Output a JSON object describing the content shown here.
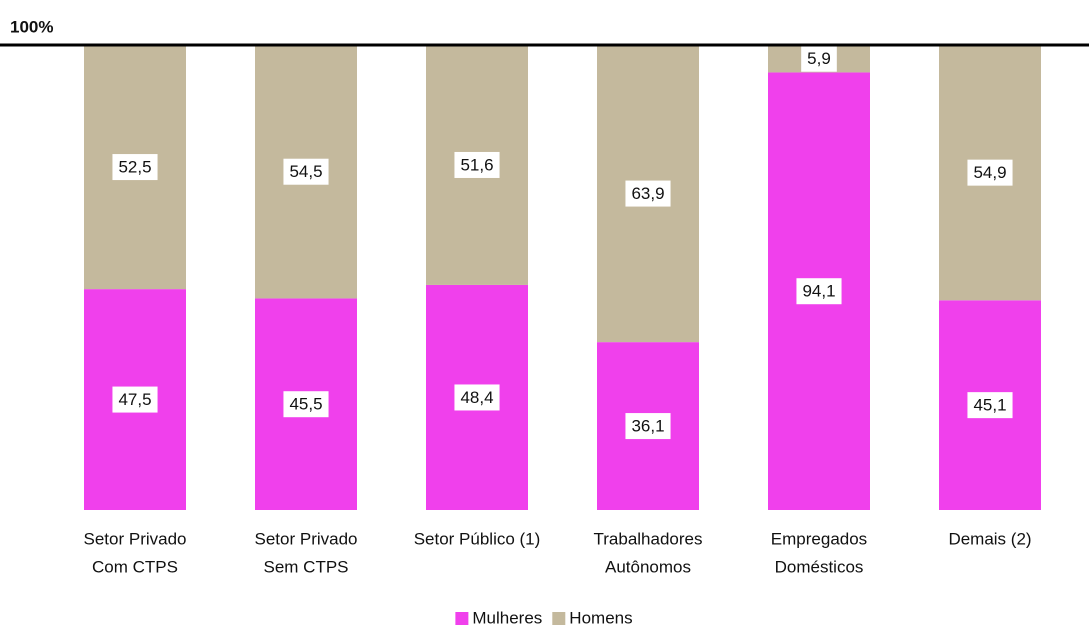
{
  "chart_data": {
    "type": "stacked-bar",
    "categories": [
      [
        "Setor Privado",
        "Com CTPS"
      ],
      [
        "Setor Privado",
        "Sem CTPS"
      ],
      [
        "Setor Público (1)"
      ],
      [
        "Trabalhadores",
        "Autônomos"
      ],
      [
        "Empregados",
        "Domésticos"
      ],
      [
        "Demais (2)"
      ]
    ],
    "series": [
      {
        "name": "Mulheres",
        "color": "#f040ec",
        "values": [
          47.5,
          45.5,
          48.4,
          36.1,
          94.1,
          45.1
        ],
        "value_labels": [
          "47,5",
          "45,5",
          "48,4",
          "36,1",
          "94,1",
          "45,1"
        ]
      },
      {
        "name": "Homens",
        "color": "#c4b99d",
        "values": [
          52.5,
          54.5,
          51.6,
          63.9,
          5.9,
          54.9
        ],
        "value_labels": [
          "52,5",
          "54,5",
          "51,6",
          "63,9",
          "5,9",
          "54,9"
        ]
      }
    ],
    "ylim": [
      0,
      100
    ],
    "yticks": [
      {
        "value": 100,
        "label": "100%"
      }
    ],
    "legend": "bottom"
  }
}
